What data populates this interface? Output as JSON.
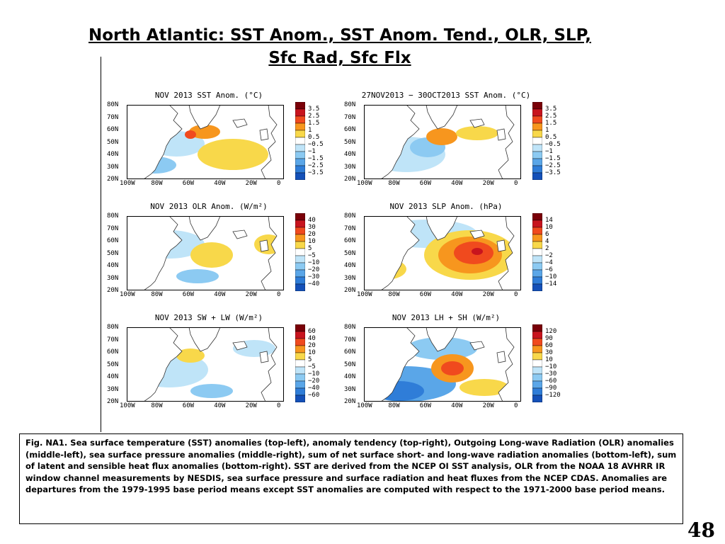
{
  "slide": {
    "title_line1": "North Atlantic: SST Anom., SST Anom. Tend., OLR, SLP,",
    "title_line2": "Sfc Rad, Sfc Flx",
    "caption": "Fig. NA1. Sea surface temperature (SST) anomalies (top-left), anomaly tendency (top-right), Outgoing Long-wave Radiation (OLR) anomalies (middle-left), sea surface pressure anomalies (middle-right), sum of net surface short- and long-wave radiation anomalies (bottom-left), sum of latent and sensible heat flux anomalies (bottom-right). SST are derived from the NCEP OI SST analysis, OLR from the NOAA 18 AVHRR IR window channel measurements by NESDIS, sea surface pressure and surface radiation and heat fluxes from the NCEP CDAS. Anomalies are departures from the 1979-1995 base period means except SST anomalies are computed with respect to the 1971-2000 base period means.",
    "page_number": "48"
  },
  "map_axes": {
    "lat_labels": [
      "80N",
      "70N",
      "60N",
      "50N",
      "40N",
      "30N",
      "20N"
    ],
    "lon_labels": [
      "100W",
      "80W",
      "60W",
      "40W",
      "20W",
      "0"
    ]
  },
  "colorbar_colors": [
    "#7a0008",
    "#c8141e",
    "#f04a1e",
    "#f7961e",
    "#f8d84a",
    "#ffffff",
    "#bfe4f8",
    "#8ccaf2",
    "#5aa6e8",
    "#2f7dd8",
    "#1450b8"
  ],
  "land_color": "#ffffff",
  "coast_color": "#333333",
  "panels": [
    {
      "id": "sst-anom",
      "title": "NOV 2013 SST Anom. (°C)",
      "levels": [
        "3.5",
        "2.5",
        "1.5",
        "1",
        "0.5",
        "−0.5",
        "−1",
        "−1.5",
        "−2.5",
        "−3.5"
      ]
    },
    {
      "id": "sst-tend",
      "title": "27NOV2013 − 30OCT2013 SST Anom. (°C)",
      "levels": [
        "3.5",
        "2.5",
        "1.5",
        "1",
        "0.5",
        "−0.5",
        "−1",
        "−1.5",
        "−2.5",
        "−3.5"
      ]
    },
    {
      "id": "olr-anom",
      "title": "NOV 2013 OLR Anom. (W/m²)",
      "levels": [
        "40",
        "30",
        "20",
        "10",
        "5",
        "−5",
        "−10",
        "−20",
        "−30",
        "−40"
      ]
    },
    {
      "id": "slp-anom",
      "title": "NOV 2013 SLP Anom. (hPa)",
      "levels": [
        "14",
        "10",
        "6",
        "4",
        "2",
        "−2",
        "−4",
        "−6",
        "−10",
        "−14"
      ]
    },
    {
      "id": "sw-lw",
      "title": "NOV 2013 SW + LW (W/m²)",
      "levels": [
        "60",
        "40",
        "20",
        "10",
        "5",
        "−5",
        "−10",
        "−20",
        "−40",
        "−60"
      ]
    },
    {
      "id": "lh-sh",
      "title": "NOV 2013 LH + SH (W/m²)",
      "levels": [
        "120",
        "90",
        "60",
        "30",
        "10",
        "−10",
        "−30",
        "−60",
        "−90",
        "−120"
      ]
    }
  ]
}
